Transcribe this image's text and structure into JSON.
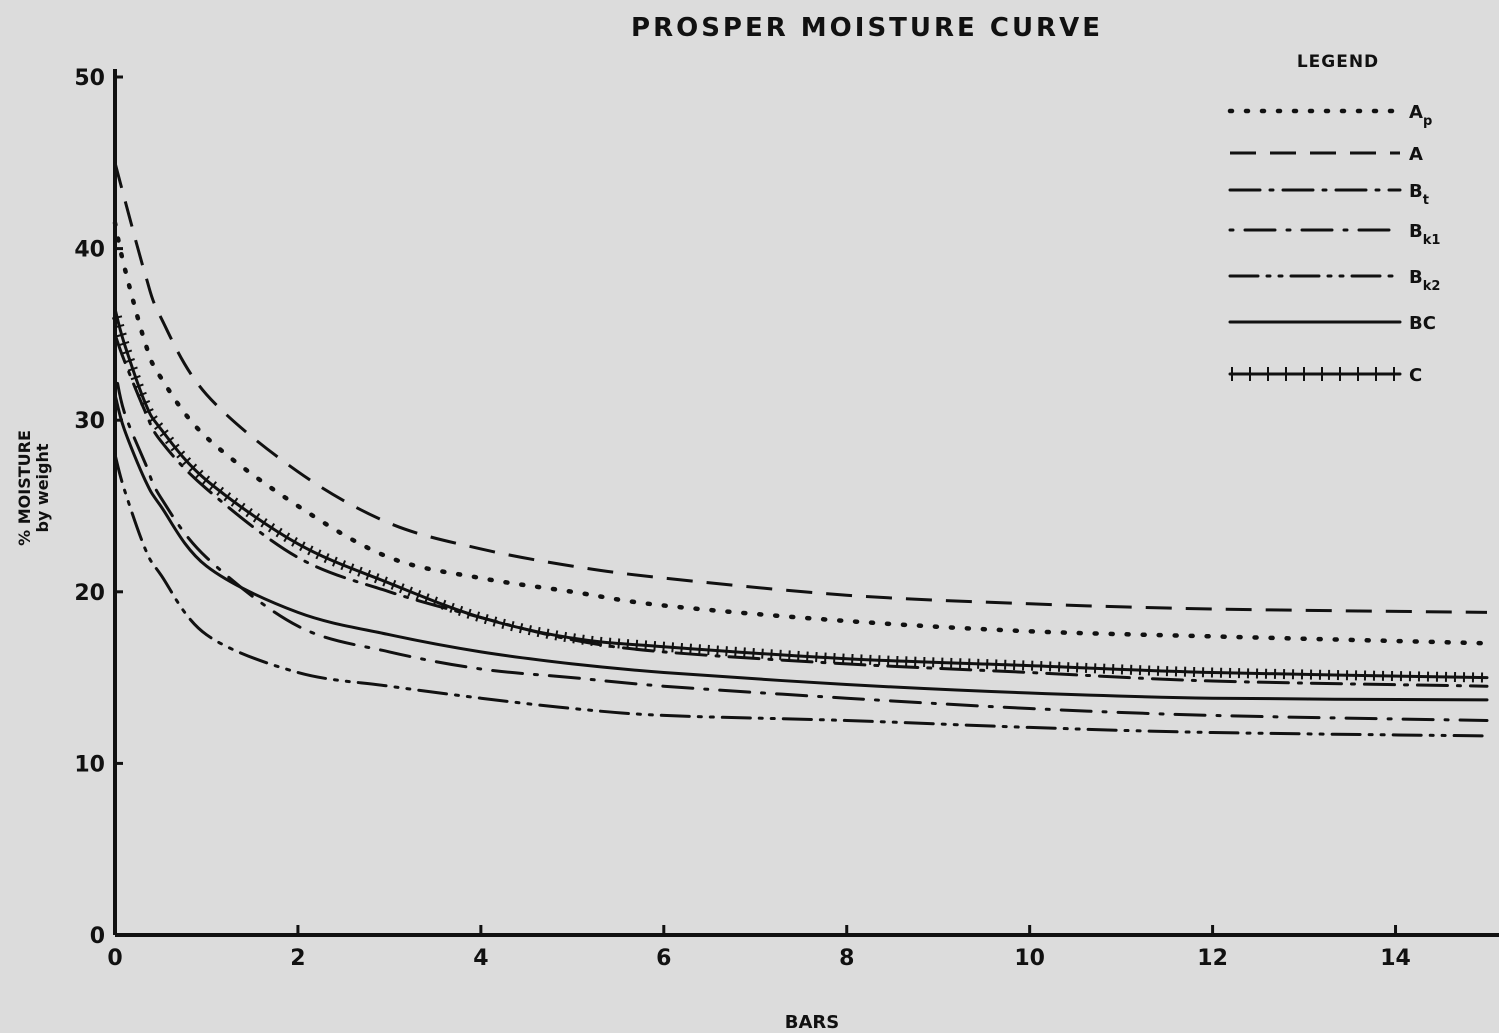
{
  "chart_data": {
    "type": "line",
    "title": "PROSPER MOISTURE CURVE",
    "xlabel": "BARS",
    "ylabel_line1": "% MOISTURE",
    "ylabel_line2": "by weight",
    "legend_title": "LEGEND",
    "xlim": [
      0,
      15
    ],
    "ylim": [
      0,
      50
    ],
    "x_ticks": [
      0,
      2,
      4,
      6,
      8,
      10,
      12,
      14
    ],
    "x_tick_labels": [
      "0",
      "2",
      "4",
      "6",
      "8",
      "10",
      "12",
      "14"
    ],
    "y_ticks": [
      0,
      10,
      20,
      30,
      40,
      50
    ],
    "y_tick_labels": [
      "0",
      "10",
      "20",
      "30",
      "40",
      "50"
    ],
    "grid": false,
    "legend_position": "top-right",
    "x": [
      0,
      0.1,
      0.33,
      0.5,
      1,
      2,
      3,
      4,
      5,
      6,
      8,
      10,
      12,
      15
    ],
    "series": [
      {
        "name": "A",
        "sub": "p",
        "style": "dotted",
        "values": [
          41.5,
          39,
          34.5,
          32.5,
          29,
          25,
          22,
          20.8,
          20,
          19.2,
          18.3,
          17.7,
          17.4,
          17
        ]
      },
      {
        "name": "A",
        "sub": "",
        "style": "dashed",
        "values": [
          45,
          43,
          38.5,
          36,
          31.5,
          27,
          24,
          22.5,
          21.5,
          20.8,
          19.8,
          19.3,
          19,
          18.8
        ]
      },
      {
        "name": "B",
        "sub": "t",
        "style": "dashdot",
        "values": [
          35,
          33.5,
          30.5,
          28.8,
          26,
          22,
          20,
          18.5,
          17.2,
          16.5,
          15.8,
          15.3,
          14.8,
          14.5
        ]
      },
      {
        "name": "B",
        "sub": "k1",
        "style": "dotdash",
        "values": [
          33,
          30.5,
          27.5,
          25.5,
          22,
          18,
          16.5,
          15.5,
          15,
          14.5,
          13.8,
          13.2,
          12.8,
          12.5
        ]
      },
      {
        "name": "B",
        "sub": "k2",
        "style": "dashdotdot",
        "values": [
          28,
          26,
          22.5,
          21,
          17.5,
          15.3,
          14.5,
          13.8,
          13.2,
          12.8,
          12.5,
          12.1,
          11.8,
          11.6
        ]
      },
      {
        "name": "BC",
        "sub": "",
        "style": "solid",
        "values": [
          31.5,
          29.5,
          26.5,
          25,
          21.5,
          18.8,
          17.5,
          16.5,
          15.8,
          15.3,
          14.6,
          14.1,
          13.8,
          13.7
        ]
      },
      {
        "name": "C",
        "sub": "",
        "style": "ticked",
        "values": [
          36.5,
          34.5,
          31,
          29.5,
          26.5,
          22.8,
          20.5,
          18.5,
          17.3,
          16.8,
          16.1,
          15.7,
          15.3,
          15
        ]
      }
    ]
  }
}
